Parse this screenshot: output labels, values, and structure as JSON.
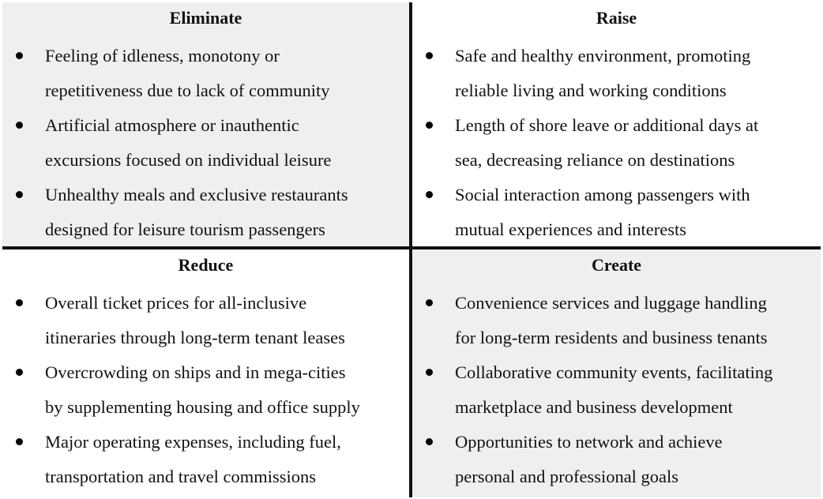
{
  "quadrants": [
    {
      "title": "Eliminate",
      "items": [
        [
          "Feeling of idleness, monotony or",
          "repetitiveness due to lack of community"
        ],
        [
          "Artificial atmosphere or inauthentic",
          "excursions focused on individual leisure"
        ],
        [
          "Unhealthy meals and exclusive restaurants",
          "designed for leisure tourism passengers"
        ]
      ]
    },
    {
      "title": "Raise",
      "items": [
        [
          "Safe and healthy environment, promoting",
          "reliable living and working conditions"
        ],
        [
          "Length of shore leave or additional days at",
          "sea, decreasing reliance on destinations"
        ],
        [
          "Social interaction among passengers with",
          "mutual experiences and interests"
        ]
      ]
    },
    {
      "title": "Reduce",
      "items": [
        [
          "Overall ticket prices for all-inclusive",
          "itineraries through long-term tenant leases"
        ],
        [
          "Overcrowding on ships and in mega-cities",
          "by supplementing housing and office supply"
        ],
        [
          "Major operating expenses, including fuel,",
          "transportation and travel commissions"
        ]
      ]
    },
    {
      "title": "Create",
      "items": [
        [
          "Convenience services and luggage handling",
          "for long-term residents and business tenants"
        ],
        [
          "Collaborative community events, facilitating",
          "marketplace and business development"
        ],
        [
          "Opportunities to network and achieve",
          "personal and professional goals"
        ]
      ]
    }
  ],
  "colors": {
    "shade": "#efefef",
    "border": "#111111"
  }
}
